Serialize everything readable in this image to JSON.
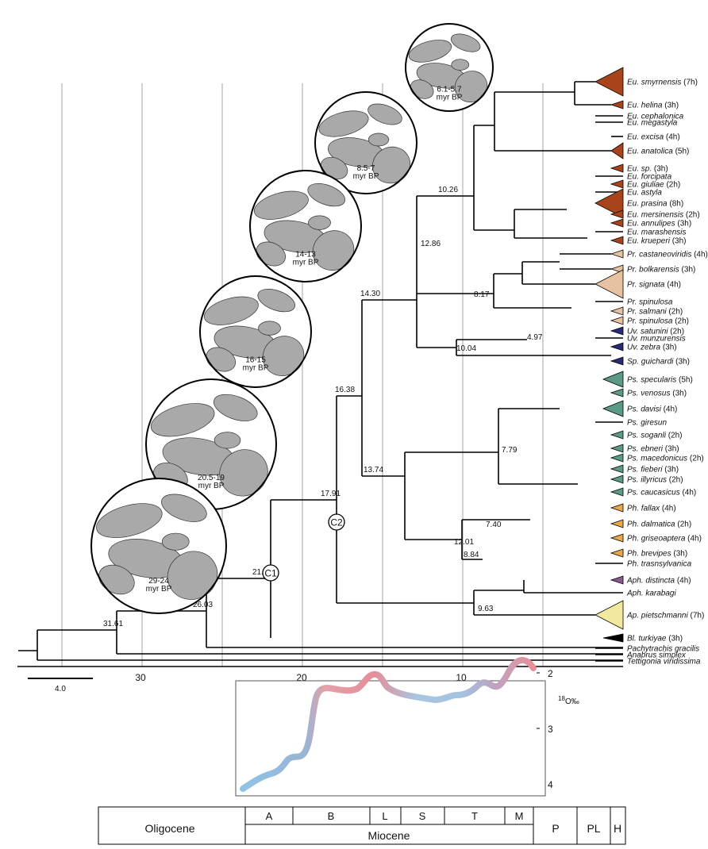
{
  "tree": {
    "scale_bar_label": "4.0",
    "node_labels": [
      "31.61",
      "26.03",
      "21.97",
      "17.91",
      "16.38",
      "14.30",
      "12.86",
      "10.26",
      "8.17",
      "10.04",
      "4.97",
      "13.74",
      "7.79",
      "12.01",
      "7.40",
      "8.84",
      "9.63"
    ],
    "calibrations": [
      "C1",
      "C2"
    ],
    "tips": [
      {
        "name": "Eu. smyrnensis",
        "count": "(7h)",
        "color": "#a8441c",
        "clade": "big"
      },
      {
        "name": "Eu. helina",
        "count": "(3h)",
        "color": "#a8441c",
        "clade": "small"
      },
      {
        "name": "Eu. cephalonica",
        "count": "",
        "color": "",
        "clade": "line"
      },
      {
        "name": "Eu. megastyla",
        "count": "",
        "color": "",
        "clade": "line"
      },
      {
        "name": "Eu. excisa",
        "count": "(4h)",
        "color": "#a8441c",
        "clade": "none"
      },
      {
        "name": "Eu. anatolica",
        "count": "(5h)",
        "color": "#a8441c",
        "clade": "mid"
      },
      {
        "name": "Eu. sp.",
        "count": "(3h)",
        "color": "#a8441c",
        "clade": "small"
      },
      {
        "name": "Eu. forcipata",
        "count": "",
        "color": "",
        "clade": "line"
      },
      {
        "name": "Eu. giuliae",
        "count": "(2h)",
        "color": "#a8441c",
        "clade": "small"
      },
      {
        "name": "Eu. astyla",
        "count": "",
        "color": "",
        "clade": "line"
      },
      {
        "name": "Eu. prasina",
        "count": "(8h)",
        "color": "#a8441c",
        "clade": "big"
      },
      {
        "name": "Eu. mersinensis",
        "count": "(2h)",
        "color": "#a8441c",
        "clade": "small"
      },
      {
        "name": "Eu. annulipes",
        "count": "(3h)",
        "color": "#a8441c",
        "clade": "small"
      },
      {
        "name": "Eu. marashensis",
        "count": "",
        "color": "",
        "clade": "line"
      },
      {
        "name": "Eu. krueperi",
        "count": "(3h)",
        "color": "#a8441c",
        "clade": "small"
      },
      {
        "name": "Pr. castaneoviridis",
        "count": "(4h)",
        "color": "#e6c2a0",
        "clade": "small"
      },
      {
        "name": "Pr. bolkarensis",
        "count": "(3h)",
        "color": "#e6c2a0",
        "clade": "small"
      },
      {
        "name": "Pr. signata",
        "count": "(4h)",
        "color": "#e6c2a0",
        "clade": "big"
      },
      {
        "name": "Pr. spinulosa",
        "count": "",
        "color": "",
        "clade": "line"
      },
      {
        "name": "Pr. salmani",
        "count": "(2h)",
        "color": "#e6c2a0",
        "clade": "small"
      },
      {
        "name": "Pr. spinulosa",
        "count": "(2h)",
        "color": "#e6c2a0",
        "clade": "small"
      },
      {
        "name": "Uv. satunini",
        "count": "(2h)",
        "color": "#2a2a7a",
        "clade": "small"
      },
      {
        "name": "Uv. munzurensis",
        "count": "",
        "color": "",
        "clade": "line"
      },
      {
        "name": "Uv. zebra",
        "count": "(3h)",
        "color": "#2a2a7a",
        "clade": "small"
      },
      {
        "name": "Sp. guichardi",
        "count": "(3h)",
        "color": "#2a2a7a",
        "clade": "small"
      },
      {
        "name": "Ps. specularis",
        "count": "(5h)",
        "color": "#5a9a86",
        "clade": "mid"
      },
      {
        "name": "Ps. venosus",
        "count": "(3h)",
        "color": "#5a9a86",
        "clade": "small"
      },
      {
        "name": "Ps. davisi",
        "count": "(4h)",
        "color": "#5a9a86",
        "clade": "mid"
      },
      {
        "name": "Ps. giresun",
        "count": "",
        "color": "",
        "clade": "line"
      },
      {
        "name": "Ps. soganli",
        "count": "(2h)",
        "color": "#5a9a86",
        "clade": "small"
      },
      {
        "name": "Ps. ebneri",
        "count": "(3h)",
        "color": "#5a9a86",
        "clade": "small"
      },
      {
        "name": "Ps. macedonicus",
        "count": "(2h)",
        "color": "#5a9a86",
        "clade": "small"
      },
      {
        "name": "Ps. fieberi",
        "count": "(3h)",
        "color": "#5a9a86",
        "clade": "small"
      },
      {
        "name": "Ps. illyricus",
        "count": "(2h)",
        "color": "#5a9a86",
        "clade": "small"
      },
      {
        "name": "Ps. caucasicus",
        "count": "(4h)",
        "color": "#5a9a86",
        "clade": "small"
      },
      {
        "name": "Ph. fallax",
        "count": "(4h)",
        "color": "#e8a84a",
        "clade": "small"
      },
      {
        "name": "Ph. dalmatica",
        "count": "(2h)",
        "color": "#e8a84a",
        "clade": "small"
      },
      {
        "name": "Ph. griseoaptera",
        "count": "(4h)",
        "color": "#e8a84a",
        "clade": "small"
      },
      {
        "name": "Ph. brevipes",
        "count": "(3h)",
        "color": "#e8a84a",
        "clade": "small"
      },
      {
        "name": "Ph. trasnsylvanica",
        "count": "",
        "color": "",
        "clade": "line"
      },
      {
        "name": "Aph. distincta",
        "count": "(4h)",
        "color": "#8a5a8e",
        "clade": "small"
      },
      {
        "name": "Aph. karabagi",
        "count": "",
        "color": "",
        "clade": "line"
      },
      {
        "name": "Ap. pietschmanni",
        "count": "(7h)",
        "color": "#f2e8a0",
        "clade": "big"
      },
      {
        "name": "Bl. turkiyae",
        "count": "(3h)",
        "color": "#000000",
        "clade": "small"
      },
      {
        "name": "Pachytrachis gracilis",
        "count": "",
        "color": "",
        "clade": "line"
      },
      {
        "name": "Anabrus simplex",
        "count": "",
        "color": "",
        "clade": "line"
      },
      {
        "name": "Tettigonia viridissima",
        "count": "",
        "color": "",
        "clade": "line"
      }
    ]
  },
  "time_axis": {
    "ticks": [
      "30",
      "20",
      "10"
    ],
    "gridlines_myr": [
      35,
      30,
      25,
      20,
      15,
      10,
      5
    ]
  },
  "maps": [
    {
      "label1": "6.1-5.7",
      "label2": "myr BP"
    },
    {
      "label1": "8.5-7",
      "label2": "myr BP"
    },
    {
      "label1": "14-13",
      "label2": "myr BP"
    },
    {
      "label1": "16-15",
      "label2": "myr BP"
    },
    {
      "label1": "20.5-19",
      "label2": "myr BP"
    },
    {
      "label1": "29-24",
      "label2": "myr BP"
    }
  ],
  "isotope": {
    "ylabel_sup": "18",
    "ylabel": "O‰",
    "ticks": [
      "2",
      "3",
      "4"
    ]
  },
  "timescale": {
    "epochs": {
      "oligocene": "Oligocene",
      "miocene": "Miocene",
      "pliocene": "P",
      "pleistocene": "PL",
      "holocene": "H"
    },
    "stages": [
      "A",
      "B",
      "L",
      "S",
      "T",
      "M"
    ]
  }
}
